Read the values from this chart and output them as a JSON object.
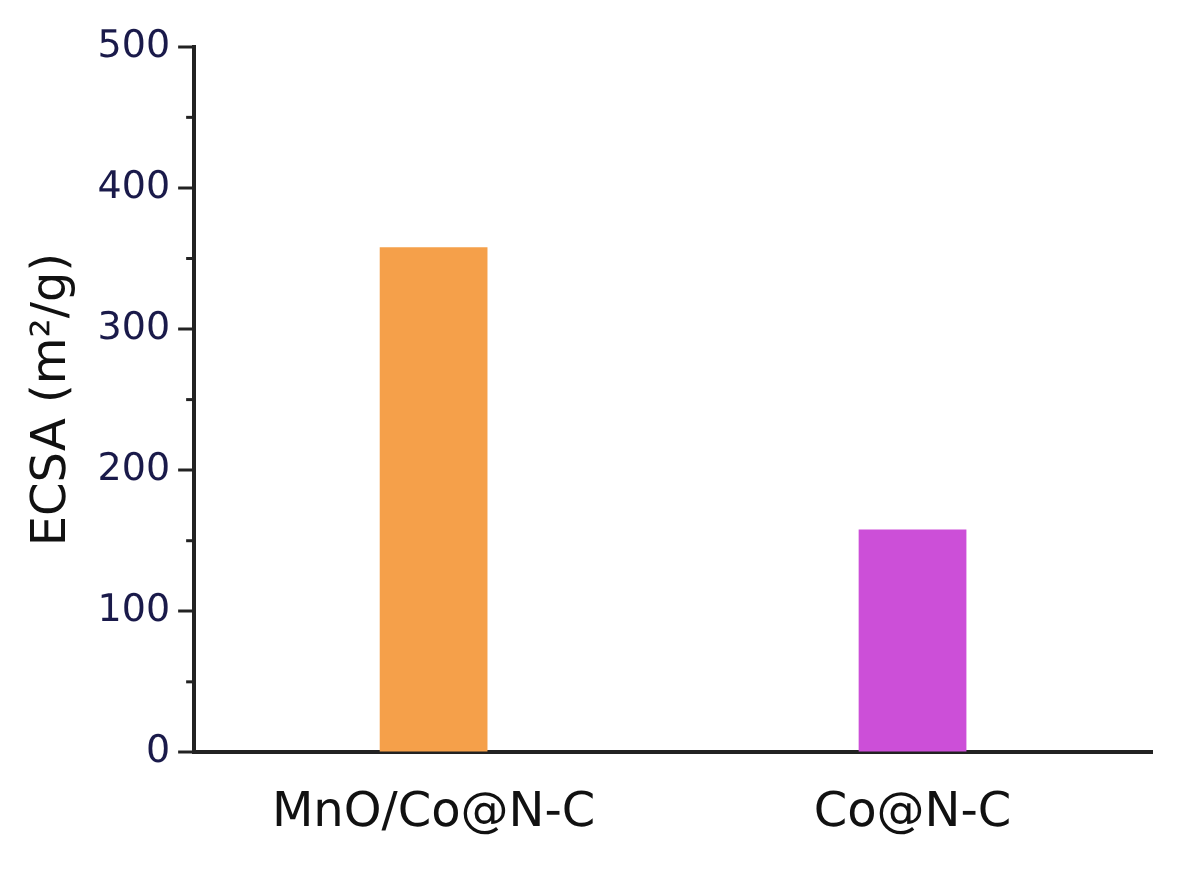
{
  "chart_data": {
    "type": "bar",
    "ylabel": "ECSA (m²/g)",
    "categories": [
      "MnO/Co@N-C",
      "Co@N-C"
    ],
    "values": [
      358,
      158
    ],
    "colors": [
      "#f5a04a",
      "#cc4fd8"
    ],
    "ylim": [
      0,
      500
    ],
    "yticks": [
      0,
      100,
      200,
      300,
      400,
      500
    ],
    "grid": false,
    "legend": false
  }
}
